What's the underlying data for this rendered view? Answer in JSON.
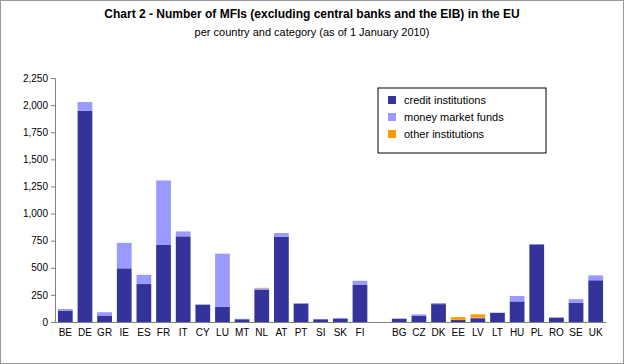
{
  "chart_data": {
    "type": "bar",
    "title": "Chart 2 - Number of MFIs (excluding central banks and the EIB) in the EU",
    "subtitle": "per country and category (as of 1 January 2010)",
    "categories": [
      "BE",
      "DE",
      "GR",
      "IE",
      "ES",
      "FR",
      "IT",
      "CY",
      "LU",
      "MT",
      "NL",
      "AT",
      "PT",
      "SI",
      "SK",
      "FI",
      null,
      "BG",
      "CZ",
      "DK",
      "EE",
      "LV",
      "LT",
      "HU",
      "PL",
      "RO",
      "SE",
      "UK"
    ],
    "series": [
      {
        "name": "credit institutions",
        "color": "#333399",
        "values": [
          105,
          1948,
          60,
          495,
          350,
          710,
          790,
          160,
          140,
          25,
          295,
          785,
          170,
          25,
          28,
          345,
          0,
          30,
          55,
          165,
          18,
          35,
          85,
          190,
          715,
          40,
          175,
          385
        ]
      },
      {
        "name": "money market funds",
        "color": "#9999ff",
        "values": [
          15,
          80,
          30,
          235,
          85,
          595,
          45,
          0,
          490,
          5,
          15,
          35,
          5,
          3,
          10,
          35,
          0,
          2,
          15,
          10,
          2,
          5,
          0,
          50,
          0,
          5,
          35,
          45
        ]
      },
      {
        "name": "other institutions",
        "color": "#ff9900",
        "values": [
          0,
          0,
          0,
          0,
          0,
          0,
          0,
          0,
          0,
          0,
          5,
          0,
          0,
          0,
          0,
          0,
          0,
          0,
          0,
          0,
          25,
          30,
          0,
          0,
          0,
          0,
          0,
          0
        ]
      }
    ],
    "stacked": true,
    "legend": "top-right",
    "ylim": [
      0,
      2250
    ],
    "yticks": [
      0,
      250,
      500,
      750,
      {
        "value": 1000,
        "label": "1,000"
      },
      {
        "value": 1250,
        "label": "1,250"
      },
      {
        "value": 1500,
        "label": "1,500"
      },
      {
        "value": 1750,
        "label": "1,750"
      },
      {
        "value": 2000,
        "label": "2,000"
      },
      {
        "value": 2250,
        "label": "2,250"
      }
    ]
  }
}
